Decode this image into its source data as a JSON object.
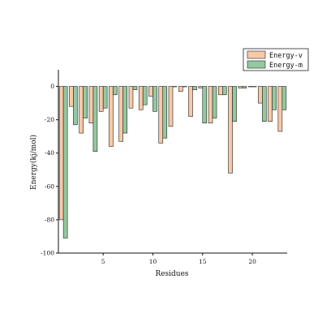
{
  "chart_data": {
    "type": "bar",
    "title": "",
    "xlabel": "Residues",
    "ylabel": "Energy(kj/mol)",
    "xlim": [
      0.5,
      23.5
    ],
    "ylim": [
      -100,
      10
    ],
    "xticks": [
      5,
      10,
      15,
      20
    ],
    "yticks": [
      0,
      -20,
      -40,
      -60,
      -80,
      -100
    ],
    "legend_position": "top-right",
    "categories": [
      1,
      2,
      3,
      4,
      5,
      6,
      7,
      8,
      9,
      10,
      11,
      12,
      13,
      14,
      15,
      16,
      17,
      18,
      19,
      20,
      21,
      22,
      23
    ],
    "series": [
      {
        "name": "Energy-v",
        "color": "#f7c9a8",
        "values": [
          -80,
          -12,
          -28,
          -22,
          -15,
          -36,
          -33,
          -13,
          -14,
          -6,
          -34,
          -24,
          -3,
          -18,
          -1,
          -22,
          -5,
          -52,
          -1,
          0,
          -10,
          -21,
          -27
        ]
      },
      {
        "name": "Energy-m",
        "color": "#93c9a0",
        "values": [
          -91,
          -23,
          -19,
          -39,
          -13,
          -5,
          -28,
          -2,
          -11,
          -15,
          -31,
          0,
          0,
          -2,
          -22,
          -19,
          -5,
          -21,
          -1,
          0,
          -21,
          -14,
          -14
        ]
      }
    ]
  }
}
